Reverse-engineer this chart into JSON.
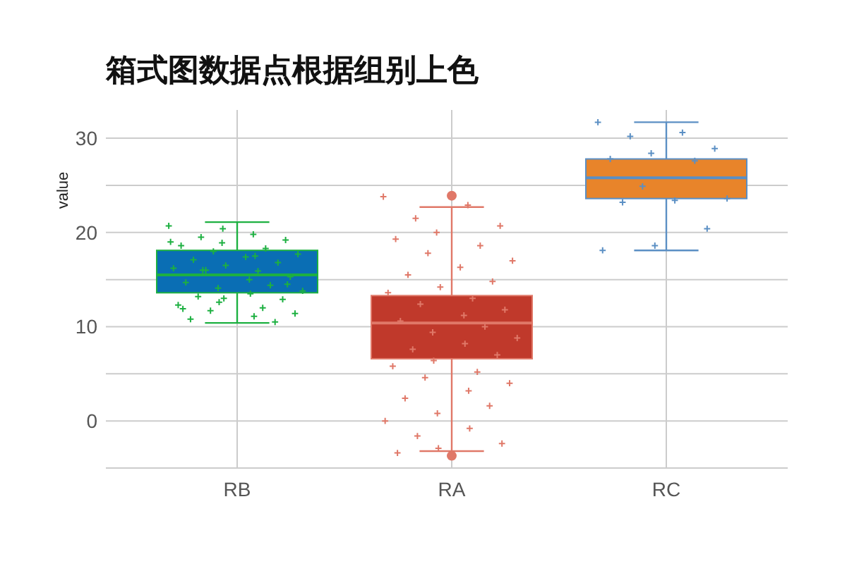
{
  "chart_data": {
    "type": "box",
    "title": "箱式图数据点根据组别上色",
    "ylabel": "value",
    "categories": [
      "RB",
      "RA",
      "RC"
    ],
    "ylim": [
      -5,
      33
    ],
    "yticks": [
      {
        "value": -5,
        "label": null
      },
      0,
      {
        "value": 5,
        "label": null
      },
      10,
      {
        "value": 15,
        "label": null
      },
      20,
      {
        "value": 25,
        "label": null
      },
      30
    ],
    "grid": true,
    "marker": "cross",
    "colors": [
      "#0a6eb4",
      "#c0392b",
      "#e8842a"
    ],
    "boxes": [
      {
        "low": 10.4,
        "q1": 13.6,
        "median": 15.5,
        "q3": 18.1,
        "high": 21.1
      },
      {
        "low": -3.2,
        "q1": 6.6,
        "median": 10.4,
        "q3": 13.3,
        "high": 22.7,
        "outliers": [
          23.9,
          -3.7
        ]
      },
      {
        "low": 18.1,
        "q1": 23.6,
        "median": 25.8,
        "q3": 27.8,
        "high": 31.7
      }
    ],
    "series": [
      {
        "type": "scatter",
        "color": "#1db041",
        "x": [
          "RB",
          "RB",
          "RB",
          "RB",
          "RB",
          "RB",
          "RB",
          "RB",
          "RB",
          "RB",
          "RB",
          "RB",
          "RB",
          "RB",
          "RB",
          "RB",
          "RB",
          "RB",
          "RB",
          "RB",
          "RB",
          "RB",
          "RB",
          "RB",
          "RB",
          "RB",
          "RB",
          "RB",
          "RB",
          "RB",
          "RB",
          "RB",
          "RB",
          "RB",
          "RB",
          "RB",
          "RB",
          "RB",
          "RB",
          "RB"
        ],
        "values": [
          20.7,
          19.8,
          19.5,
          19.2,
          18.9,
          18.6,
          18.3,
          18,
          17.7,
          17.4,
          17.1,
          16.8,
          16.5,
          16.2,
          15.9,
          16.0,
          15.3,
          15,
          14.7,
          14.4,
          14.1,
          13.8,
          13.5,
          13.2,
          12.9,
          12.6,
          12.3,
          12,
          11.7,
          11.4,
          11.1,
          10.8,
          10.5,
          20.4,
          19,
          17.5,
          16,
          14.5,
          13,
          11.9
        ]
      },
      {
        "type": "scatter",
        "color": "#e07868",
        "x": [
          "RA",
          "RA",
          "RA",
          "RA",
          "RA",
          "RA",
          "RA",
          "RA",
          "RA",
          "RA",
          "RA",
          "RA",
          "RA",
          "RA",
          "RA",
          "RA",
          "RA",
          "RA",
          "RA",
          "RA",
          "RA",
          "RA",
          "RA",
          "RA",
          "RA",
          "RA",
          "RA",
          "RA",
          "RA",
          "RA",
          "RA",
          "RA",
          "RA",
          "RA",
          "RA",
          "RA",
          "RA",
          "RA",
          "RA",
          "RA"
        ],
        "values": [
          23.8,
          22.9,
          21.5,
          20.7,
          20,
          19.3,
          18.6,
          17.8,
          17,
          16.3,
          15.5,
          14.8,
          14.2,
          13.6,
          13,
          12.4,
          11.8,
          11.2,
          10.6,
          10,
          9.4,
          8.8,
          8.2,
          7.6,
          7,
          6.4,
          5.8,
          5.2,
          4.6,
          4,
          3.2,
          2.4,
          1.6,
          0.8,
          0,
          -0.8,
          -1.6,
          -2.4,
          -2.9,
          -3.4
        ]
      },
      {
        "type": "scatter",
        "color": "#5b8fc4",
        "x": [
          "RC",
          "RC",
          "RC",
          "RC",
          "RC",
          "RC",
          "RC",
          "RC",
          "RC",
          "RC",
          "RC",
          "RC",
          "RC",
          "RC"
        ],
        "values": [
          31.7,
          30.6,
          30.2,
          28.9,
          28.4,
          27.8,
          27.6,
          24.9,
          23.6,
          23.4,
          23.2,
          20.4,
          18.6,
          18.1
        ]
      }
    ]
  }
}
